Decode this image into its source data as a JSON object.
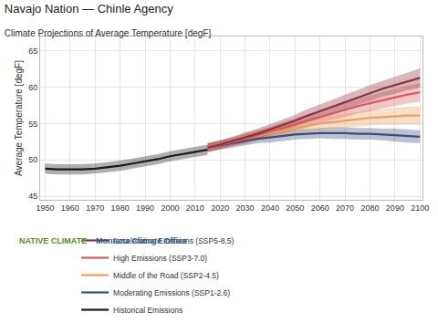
{
  "chart_data": {
    "type": "line",
    "title": "Navajo Nation — Chinle Agency",
    "subtitle": "Climate Projections of Average Temperature [degF]",
    "y_label": "Average Temperature [degF]",
    "annotations": [
      "NATIVE CLIMATE",
      "Montana Climate Office"
    ],
    "x": [
      1950,
      1955,
      1960,
      1965,
      1970,
      1975,
      1980,
      1985,
      1990,
      1995,
      2000,
      2005,
      2010,
      2015,
      2020,
      2025,
      2030,
      2035,
      2040,
      2045,
      2050,
      2055,
      2060,
      2065,
      2070,
      2075,
      2080,
      2085,
      2090,
      2095,
      2100
    ],
    "xlim": [
      1948,
      2101
    ],
    "xticks": [
      1950,
      1960,
      1970,
      1980,
      1990,
      2000,
      2010,
      2020,
      2030,
      2040,
      2050,
      2060,
      2070,
      2080,
      2090,
      2100
    ],
    "ylim": [
      44.5,
      67
    ],
    "yticks": [
      45,
      50,
      55,
      60,
      65
    ],
    "grid": true,
    "legend": "bottom",
    "series": [
      {
        "name": "Historical Emissions",
        "color": "#1a1a1a",
        "values": [
          48.8,
          48.7,
          48.7,
          48.7,
          48.8,
          49.0,
          49.2,
          49.5,
          49.8,
          50.1,
          50.5,
          50.8,
          51.1,
          51.4,
          null,
          null,
          null,
          null,
          null,
          null,
          null,
          null,
          null,
          null,
          null,
          null,
          null,
          null,
          null,
          null,
          null
        ],
        "lower": [
          48.1,
          48.0,
          48.0,
          48.0,
          48.1,
          48.3,
          48.5,
          48.8,
          49.1,
          49.4,
          49.8,
          50.1,
          50.4,
          50.7,
          null,
          null,
          null,
          null,
          null,
          null,
          null,
          null,
          null,
          null,
          null,
          null,
          null,
          null,
          null,
          null,
          null
        ],
        "upper": [
          49.5,
          49.4,
          49.4,
          49.4,
          49.5,
          49.7,
          49.9,
          50.2,
          50.5,
          50.8,
          51.2,
          51.5,
          51.8,
          52.1,
          null,
          null,
          null,
          null,
          null,
          null,
          null,
          null,
          null,
          null,
          null,
          null,
          null,
          null,
          null,
          null,
          null
        ]
      },
      {
        "name": "Moderating Emissions (SSP1-2.6)",
        "color": "#3b4d78",
        "values": [
          null,
          null,
          null,
          null,
          null,
          null,
          null,
          null,
          null,
          null,
          null,
          null,
          null,
          51.7,
          52.0,
          52.3,
          52.6,
          52.9,
          53.1,
          53.3,
          53.5,
          53.6,
          53.7,
          53.7,
          53.7,
          53.6,
          53.6,
          53.5,
          53.4,
          53.3,
          53.2
        ],
        "lower": [
          null,
          null,
          null,
          null,
          null,
          null,
          null,
          null,
          null,
          null,
          null,
          null,
          null,
          51.1,
          51.4,
          51.7,
          52.0,
          52.3,
          52.4,
          52.6,
          52.8,
          52.9,
          53.0,
          52.9,
          52.9,
          52.8,
          52.8,
          52.7,
          52.5,
          52.4,
          52.3
        ],
        "upper": [
          null,
          null,
          null,
          null,
          null,
          null,
          null,
          null,
          null,
          null,
          null,
          null,
          null,
          52.3,
          52.6,
          52.9,
          53.2,
          53.5,
          53.8,
          54.0,
          54.2,
          54.3,
          54.4,
          54.5,
          54.5,
          54.4,
          54.4,
          54.3,
          54.3,
          54.2,
          54.1
        ]
      },
      {
        "name": "Middle of the Road (SSP2-4.5)",
        "color": "#e9a25e",
        "values": [
          null,
          null,
          null,
          null,
          null,
          null,
          null,
          null,
          null,
          null,
          null,
          null,
          null,
          51.7,
          52.1,
          52.5,
          52.9,
          53.3,
          53.7,
          54.0,
          54.4,
          54.7,
          55.0,
          55.2,
          55.4,
          55.6,
          55.8,
          55.9,
          56.0,
          56.1,
          56.1
        ],
        "lower": [
          null,
          null,
          null,
          null,
          null,
          null,
          null,
          null,
          null,
          null,
          null,
          null,
          null,
          51.1,
          51.5,
          51.9,
          52.2,
          52.6,
          53.0,
          53.2,
          53.6,
          53.8,
          54.1,
          54.3,
          54.4,
          54.6,
          54.7,
          54.8,
          54.8,
          54.9,
          54.8
        ],
        "upper": [
          null,
          null,
          null,
          null,
          null,
          null,
          null,
          null,
          null,
          null,
          null,
          null,
          null,
          52.3,
          52.7,
          53.1,
          53.6,
          54.0,
          54.4,
          54.8,
          55.2,
          55.6,
          55.9,
          56.1,
          56.4,
          56.6,
          56.9,
          57.0,
          57.2,
          57.3,
          57.4
        ]
      },
      {
        "name": "High Emissions (SSP3-7.0)",
        "color": "#d65c5c",
        "values": [
          null,
          null,
          null,
          null,
          null,
          null,
          null,
          null,
          null,
          null,
          null,
          null,
          null,
          51.7,
          52.1,
          52.5,
          52.9,
          53.4,
          53.9,
          54.4,
          54.9,
          55.4,
          55.9,
          56.4,
          56.9,
          57.4,
          57.8,
          58.2,
          58.6,
          59.0,
          59.3
        ],
        "lower": [
          null,
          null,
          null,
          null,
          null,
          null,
          null,
          null,
          null,
          null,
          null,
          null,
          null,
          51.1,
          51.5,
          51.9,
          52.2,
          52.7,
          53.2,
          53.6,
          54.1,
          54.5,
          55.0,
          55.5,
          55.9,
          56.4,
          56.7,
          57.1,
          57.4,
          57.8,
          58.0
        ],
        "upper": [
          null,
          null,
          null,
          null,
          null,
          null,
          null,
          null,
          null,
          null,
          null,
          null,
          null,
          52.3,
          52.7,
          53.1,
          53.6,
          54.1,
          54.6,
          55.2,
          55.7,
          56.3,
          56.8,
          57.3,
          57.9,
          58.4,
          58.9,
          59.3,
          59.8,
          60.2,
          60.6
        ]
      },
      {
        "name": "Accelerating Emissions (SSP5-8.5)",
        "color": "#8b3040",
        "values": [
          null,
          null,
          null,
          null,
          null,
          null,
          null,
          null,
          null,
          null,
          null,
          null,
          null,
          51.7,
          52.1,
          52.6,
          53.1,
          53.6,
          54.2,
          54.8,
          55.4,
          56.1,
          56.7,
          57.4,
          58.0,
          58.6,
          59.2,
          59.8,
          60.3,
          60.8,
          61.3
        ],
        "lower": [
          null,
          null,
          null,
          null,
          null,
          null,
          null,
          null,
          null,
          null,
          null,
          null,
          null,
          51.1,
          51.5,
          52.0,
          52.4,
          52.9,
          53.5,
          54.0,
          54.6,
          55.2,
          55.8,
          56.5,
          57.0,
          57.6,
          58.1,
          58.7,
          59.1,
          59.6,
          60.0
        ],
        "upper": [
          null,
          null,
          null,
          null,
          null,
          null,
          null,
          null,
          null,
          null,
          null,
          null,
          null,
          52.3,
          52.7,
          53.2,
          53.8,
          54.3,
          54.9,
          55.6,
          56.2,
          57.0,
          57.6,
          58.3,
          59.0,
          59.6,
          60.3,
          60.9,
          61.5,
          62.0,
          62.6
        ]
      }
    ]
  }
}
